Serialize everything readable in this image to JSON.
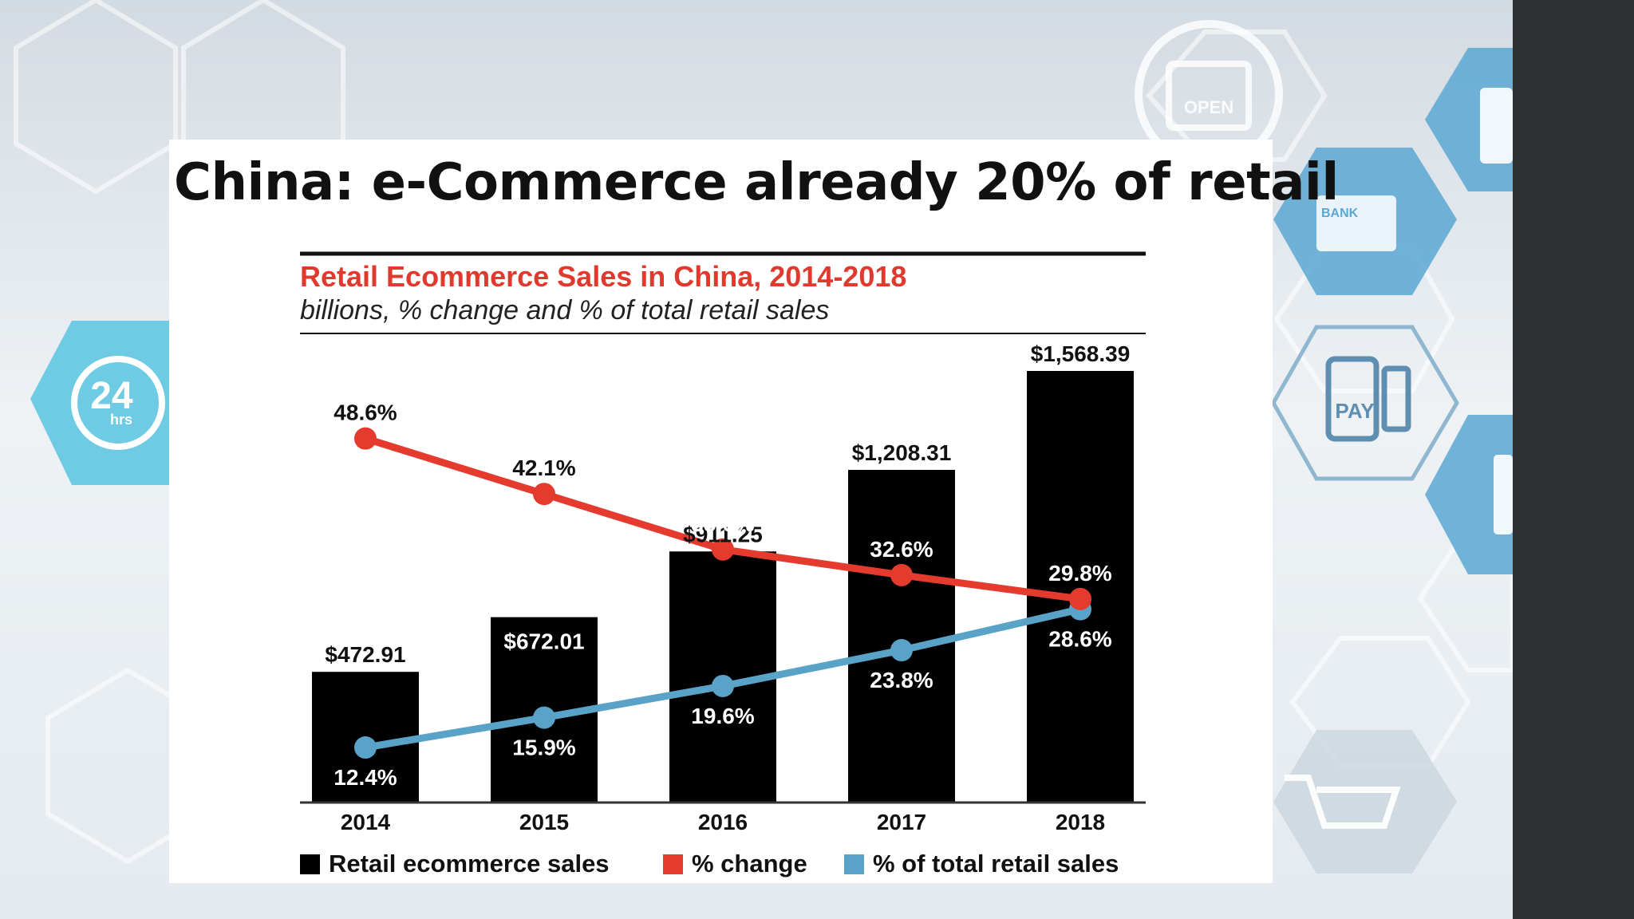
{
  "slide": {
    "title": "China: e-Commerce already 20% of retail"
  },
  "background_icons": {
    "hours_badge": "24",
    "hours_sub": "hrs",
    "pay_label": "PAY",
    "bank_label": "BANK",
    "open_label": "OPEN"
  },
  "colors": {
    "bars": "#000000",
    "change_line": "#e53b2f",
    "share_line": "#5aa3c8",
    "title_red": "#e03a2f"
  },
  "chart_data": {
    "type": "bar",
    "title": "Retail Ecommerce Sales in China, 2014-2018",
    "subtitle": "billions, % change and % of total retail sales",
    "categories": [
      "2014",
      "2015",
      "2016",
      "2017",
      "2018"
    ],
    "series": [
      {
        "name": "Retail ecommerce sales",
        "type": "bar",
        "values": [
          472.91,
          672.01,
          911.25,
          1208.31,
          1568.39
        ],
        "labels": [
          "$472.91",
          "$672.01",
          "$911.25",
          "$1,208.31",
          "$1,568.39"
        ]
      },
      {
        "name": "% change",
        "type": "line",
        "values": [
          48.6,
          42.1,
          35.6,
          32.6,
          29.8
        ],
        "labels": [
          "48.6%",
          "42.1%",
          "35.6%",
          "32.6%",
          "29.8%"
        ]
      },
      {
        "name": "% of total retail sales",
        "type": "line",
        "values": [
          12.4,
          15.9,
          19.6,
          23.8,
          28.6
        ],
        "labels": [
          "12.4%",
          "15.9%",
          "19.6%",
          "23.8%",
          "28.6%"
        ]
      }
    ],
    "legend_position": "bottom",
    "grid": false
  }
}
